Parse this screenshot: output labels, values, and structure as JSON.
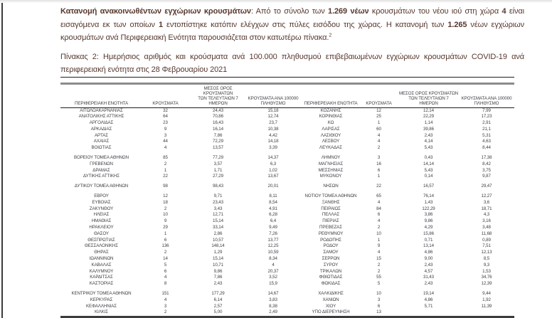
{
  "colors": {
    "body_text": "#57382e",
    "table_text": "#3f3f47",
    "rule_dark": "#1f1f1f",
    "rule_thick_gray": "#8c8c8c",
    "table_bottom": "#3c3c3c",
    "page_edge": "#3b3b3b"
  },
  "intro": {
    "runs": [
      {
        "text": "Κατανομή ανακοινωθέντων εγχώριων κρουσμάτων",
        "bold": true
      },
      {
        "text": ": Από το σύνολο των ",
        "bold": false
      },
      {
        "text": "1.269 νέων",
        "bold": true
      },
      {
        "text": " κρουσμάτων του νέου ιού στη χώρα ",
        "bold": false
      },
      {
        "text": "4",
        "bold": true
      },
      {
        "text": " είναι εισαγόμενα εκ των οποίων ",
        "bold": false
      },
      {
        "text": "1",
        "bold": true
      },
      {
        "text": " εντοπίστηκε κατόπιν ελέγχων στις πύλες εισόδου της χώρας. Η κατανομή των ",
        "bold": false
      },
      {
        "text": "1.265",
        "bold": true
      },
      {
        "text": " νέων εγχώριων κρουσμάτων ανά Περιφερειακή Ενότητα παρουσιάζεται στον κατωτέρω πίνακα.",
        "bold": false
      },
      {
        "text": "2",
        "bold": false,
        "sup": true
      }
    ]
  },
  "caption": "Πίνακας 2: Ημερήσιος αριθμός και κρούσματα ανά 100.000 πληθυσμού επιβεβαιωμένων εγχώριων κρουσμάτων COVID-19 ανά περιφερειακή ενότητα στις 28 Φεβρουαρίου 2021",
  "table": {
    "headers": {
      "region": "ΠΕΡΙΦΕΡΕΙΑΚΗ ΕΝΟΤΗΤΑ",
      "cases": "ΚΡΟΥΣΜΑΤΑ",
      "avg7": "ΜΕΣΟΣ ΟΡΟΣ ΚΡΟΥΣΜΑΤΩΝ\nΤΩΝ ΤΕΛΕΥΤΑΙΩΝ 7\nΗΜΕΡΩΝ",
      "per100k": "ΚΡΟΥΣΜΑΤΑ ΑΝΑ 100000\nΠΛΗΘΥΣΜΟ"
    },
    "rows": [
      {
        "l": [
          "ΑΙΤΩΛΟΑΚΑΡΝΑΝΙΑΣ",
          "32",
          "24,43",
          "15,18"
        ],
        "r": [
          "ΚΟΖΑΝΗΣ",
          "12",
          "12,14",
          "7,99"
        ]
      },
      {
        "l": [
          "ΑΝΑΤΟΛΙΚΗΣ ΑΤΤΙΚΗΣ",
          "64",
          "70,86",
          "12,74"
        ],
        "r": [
          "ΚΟΡΙΝΘΙΑΣ",
          "25",
          "22,29",
          "17,23"
        ]
      },
      {
        "l": [
          "ΑΡΓΟΛΙΔΑΣ",
          "23",
          "16,43",
          "23,7"
        ],
        "r": [
          "ΚΩ",
          "1",
          "1,14",
          "2,91"
        ]
      },
      {
        "l": [
          "ΑΡΚΑΔΙΑΣ",
          "9",
          "16,14",
          "10,38"
        ],
        "r": [
          "ΛΑΡΙΣΑΣ",
          "60",
          "39,86",
          "21,1"
        ]
      },
      {
        "l": [
          "ΑΡΤΑΣ",
          "3",
          "7,86",
          "4,42"
        ],
        "r": [
          "ΛΑΣΙΘΙΟΥ",
          "4",
          "2,43",
          "5,31"
        ]
      },
      {
        "l": [
          "ΑΧΑΪΑΣ",
          "44",
          "72,29",
          "14,18"
        ],
        "r": [
          "ΛΕΣΒΟΥ",
          "4",
          "4,14",
          "4,63"
        ]
      },
      {
        "l": [
          "ΒΟΙΩΤΙΑΣ",
          "4",
          "13,57",
          "3,39"
        ],
        "r": [
          "ΛΕΥΚΑΔΑΣ",
          "2",
          "5,43",
          "8,44"
        ]
      },
      null,
      {
        "l": [
          "ΒΟΡΕΙΟΥ ΤΟΜΕΑ ΑΘΗΝΩΝ",
          "85",
          "77,29",
          "14,37"
        ],
        "r": [
          "ΛΗΜΝΟΥ",
          "3",
          "0,43",
          "17,38"
        ]
      },
      {
        "l": [
          "ΓΡΕΒΕΝΩΝ",
          "2",
          "3,57",
          "6,3"
        ],
        "r": [
          "ΜΑΓΝΗΣΙΑΣ",
          "16",
          "14,14",
          "8,42"
        ]
      },
      {
        "l": [
          "ΔΡΑΜΑΣ",
          "1",
          "1,71",
          "1,02"
        ],
        "r": [
          "ΜΕΣΣΗΝΙΑΣ",
          "6",
          "5,43",
          "3,75"
        ]
      },
      {
        "l": [
          "ΔΥΤΙΚΗΣ ΑΤΤΙΚΗΣ",
          "22",
          "27,29",
          "13,67"
        ],
        "r": [
          "ΜΥΚΟΝΟΥ",
          "1",
          "0,14",
          "9,87"
        ]
      },
      null,
      {
        "l": [
          "ΔΥΤΙΚΟΥ ΤΟΜΕΑ ΑΘΗΝΩΝ",
          "98",
          "98,43",
          "20,01"
        ],
        "r": [
          "ΝΗΣΩΝ",
          "22",
          "16,57",
          "29,47"
        ]
      },
      null,
      {
        "l": [
          "ΕΒΡΟΥ",
          "12",
          "9,71",
          "8,11"
        ],
        "r": [
          "ΝΟΤΙΟΥ ΤΟΜΕΑ ΑΘΗΝΩΝ",
          "65",
          "76,14",
          "12,27"
        ]
      },
      {
        "l": [
          "ΕΥΒΟΙΑΣ",
          "18",
          "23,43",
          "8,54"
        ],
        "r": [
          "ΞΑΝΘΗΣ",
          "4",
          "1,43",
          "3,6"
        ]
      },
      {
        "l": [
          "ΖΑΚΥΝΘΟΥ",
          "2",
          "3,43",
          "4,91"
        ],
        "r": [
          "ΠΕΙΡΑΙΩΣ",
          "84",
          "122,29",
          "18,71"
        ]
      },
      {
        "l": [
          "ΗΛΕΙΑΣ",
          "10",
          "12,71",
          "6,28"
        ],
        "r": [
          "ΠΕΛΛΑΣ",
          "6",
          "3,86",
          "4,3"
        ]
      },
      {
        "l": [
          "ΗΜΑΘΙΑΣ",
          "9",
          "15,14",
          "6,4"
        ],
        "r": [
          "ΠΙΕΡΙΑΣ",
          "4",
          "9,86",
          "3,16"
        ]
      },
      {
        "l": [
          "ΗΡΑΚΛΕΙΟΥ",
          "29",
          "33,14",
          "9,49"
        ],
        "r": [
          "ΠΡΕΒΕΖΑΣ",
          "2",
          "4,29",
          "3,48"
        ]
      },
      {
        "l": [
          "ΘΑΣΟΥ",
          "1",
          "2,86",
          "7,26"
        ],
        "r": [
          "ΡΕΘΥΜΝΟΥ",
          "10",
          "15,86",
          "11,68"
        ]
      },
      {
        "l": [
          "ΘΕΣΠΡΩΤΙΑΣ",
          "6",
          "10,57",
          "13,77"
        ],
        "r": [
          "ΡΟΔΟΠΗΣ",
          "1",
          "0,71",
          "0,89"
        ]
      },
      {
        "l": [
          "ΘΕΣΣΑΛΟΝΙΚΗΣ",
          "136",
          "148,14",
          "12,25"
        ],
        "r": [
          "ΡΟΔΟΥ",
          "9",
          "13,14",
          "7,51"
        ]
      },
      {
        "l": [
          "ΘΗΡΑΣ",
          "2",
          "1,29",
          "10,59"
        ],
        "r": [
          "ΣΑΜΟΥ",
          "4",
          "4,86",
          "12,13"
        ]
      },
      {
        "l": [
          "ΙΩΑΝΝΙΝΩΝ",
          "14",
          "15,14",
          "8,34"
        ],
        "r": [
          "ΣΕΡΡΩΝ",
          "15",
          "9,00",
          "8,5"
        ]
      },
      {
        "l": [
          "ΚΑΒΑΛΑΣ",
          "5",
          "10,71",
          "4"
        ],
        "r": [
          "ΣΥΡΟΥ",
          "2",
          "2,43",
          "9,3"
        ]
      },
      {
        "l": [
          "ΚΑΛΥΜΝΟΥ",
          "6",
          "9,86",
          "20,37"
        ],
        "r": [
          "ΤΡΙΚΑΛΩΝ",
          "2",
          "4,57",
          "1,53"
        ]
      },
      {
        "l": [
          "ΚΑΡΔΙΤΣΑΣ",
          "4",
          "7,86",
          "3,52"
        ],
        "r": [
          "ΦΘΙΩΤΙΔΑΣ",
          "55",
          "31,43",
          "34,76"
        ]
      },
      {
        "l": [
          "ΚΑΣΤΟΡΙΑΣ",
          "8",
          "2,43",
          "15,9"
        ],
        "r": [
          "ΦΩΚΙΔΑΣ",
          "5",
          "2,43",
          "12,39"
        ]
      },
      null,
      {
        "l": [
          "ΚΕΝΤΡΙΚΟΥ ΤΟΜΕΑ ΑΘΗΝΩΝ",
          "151",
          "177,29",
          "14,67"
        ],
        "r": [
          "ΧΑΛΚΙΔΙΚΗΣ",
          "10",
          "19,14",
          "9,44"
        ]
      },
      {
        "l": [
          "ΚΕΡΚΥΡΑΣ",
          "4",
          "6,14",
          "3,83"
        ],
        "r": [
          "ΧΑΝΙΩΝ",
          "3",
          "4,86",
          "1,92"
        ]
      },
      {
        "l": [
          "ΚΕΦΑΛΛΗΝΙΑΣ",
          "3",
          "2,57",
          "8,38"
        ],
        "r": [
          "ΧΙΟΥ",
          "6",
          "5,71",
          "11,39"
        ]
      },
      {
        "l": [
          "ΚΙΛΚΙΣ",
          "2",
          "5,00",
          "2,49"
        ],
        "r": [
          "ΥΠΟ ΔΙΕΡΕΥΝΗΣΗ",
          "13",
          "",
          ""
        ]
      }
    ]
  }
}
